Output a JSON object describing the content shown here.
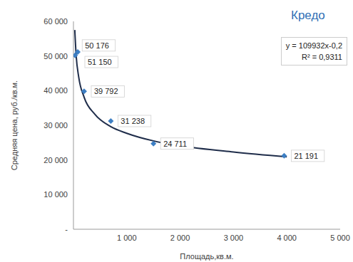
{
  "chart_data": {
    "type": "scatter",
    "x_label": "Площадь,кв.м.",
    "y_label": "Средняя цена, руб./кв.м.",
    "x": [
      30,
      80,
      200,
      700,
      1500,
      3950
    ],
    "values": [
      50176,
      51150,
      39792,
      31238,
      24711,
      21191
    ],
    "value_labels": [
      "50 176",
      "51 150",
      "39 792",
      "31 238",
      "24 711",
      "21 191"
    ],
    "data_labels": true,
    "color": "#3d7fc4",
    "marker": "diamond",
    "trendline": {
      "x": [
        25,
        50,
        100,
        200,
        400,
        700,
        1000,
        1500,
        2000,
        3000,
        4000
      ],
      "values": [
        57500,
        50300,
        43800,
        38100,
        33200,
        29600,
        27700,
        25500,
        24100,
        22300,
        20900
      ],
      "color": "#1f2d4a",
      "line_style": "solid"
    },
    "annotations": [
      "y = 109932x-0,2",
      "R² = 0,9311"
    ],
    "logo_text": "Кредо",
    "xlim": [
      0,
      5000
    ],
    "xticks": [
      {
        "value": 1000,
        "label": "1 000"
      },
      {
        "value": 2000,
        "label": "2 000"
      },
      {
        "value": 3000,
        "label": "3 000"
      },
      {
        "value": 4000,
        "label": "4 000"
      },
      {
        "value": 5000,
        "label": "5 000"
      }
    ],
    "ylim": [
      0,
      60000
    ],
    "yticks": [
      {
        "value": 0,
        "label": "-"
      },
      {
        "value": 10000,
        "label": "10 000"
      },
      {
        "value": 20000,
        "label": "20 000"
      },
      {
        "value": 30000,
        "label": "30 000"
      },
      {
        "value": 40000,
        "label": "40 000"
      },
      {
        "value": 50000,
        "label": "50 000"
      },
      {
        "value": 60000,
        "label": "60 000"
      }
    ],
    "grid": false
  }
}
